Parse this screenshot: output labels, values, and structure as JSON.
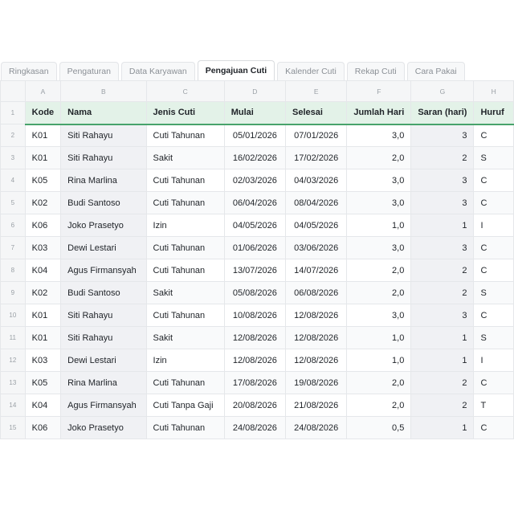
{
  "tabs": [
    {
      "label": "Ringkasan",
      "active": false
    },
    {
      "label": "Pengaturan",
      "active": false
    },
    {
      "label": "Data Karyawan",
      "active": false
    },
    {
      "label": "Pengajuan Cuti",
      "active": true
    },
    {
      "label": "Kalender Cuti",
      "active": false
    },
    {
      "label": "Rekap Cuti",
      "active": false
    },
    {
      "label": "Cara Pakai",
      "active": false
    }
  ],
  "column_letters": [
    "A",
    "B",
    "C",
    "D",
    "E",
    "F",
    "G",
    "H"
  ],
  "headers": [
    "Kode",
    "Nama",
    "Jenis Cuti",
    "Mulai",
    "Selesai",
    "Jumlah Hari",
    "Saran (hari)",
    "Huruf"
  ],
  "row_numbers": [
    "1",
    "2",
    "3",
    "4",
    "5",
    "6",
    "7",
    "8",
    "9",
    "10",
    "11",
    "12",
    "13",
    "14",
    "15"
  ],
  "rows": [
    [
      "K01",
      "Siti Rahayu",
      "Cuti Tahunan",
      "05/01/2026",
      "07/01/2026",
      "3,0",
      "3",
      "C"
    ],
    [
      "K01",
      "Siti Rahayu",
      "Sakit",
      "16/02/2026",
      "17/02/2026",
      "2,0",
      "2",
      "S"
    ],
    [
      "K05",
      "Rina Marlina",
      "Cuti Tahunan",
      "02/03/2026",
      "04/03/2026",
      "3,0",
      "3",
      "C"
    ],
    [
      "K02",
      "Budi Santoso",
      "Cuti Tahunan",
      "06/04/2026",
      "08/04/2026",
      "3,0",
      "3",
      "C"
    ],
    [
      "K06",
      "Joko Prasetyo",
      "Izin",
      "04/05/2026",
      "04/05/2026",
      "1,0",
      "1",
      "I"
    ],
    [
      "K03",
      "Dewi Lestari",
      "Cuti Tahunan",
      "01/06/2026",
      "03/06/2026",
      "3,0",
      "3",
      "C"
    ],
    [
      "K04",
      "Agus Firmansyah",
      "Cuti Tahunan",
      "13/07/2026",
      "14/07/2026",
      "2,0",
      "2",
      "C"
    ],
    [
      "K02",
      "Budi Santoso",
      "Sakit",
      "05/08/2026",
      "06/08/2026",
      "2,0",
      "2",
      "S"
    ],
    [
      "K01",
      "Siti Rahayu",
      "Cuti Tahunan",
      "10/08/2026",
      "12/08/2026",
      "3,0",
      "3",
      "C"
    ],
    [
      "K01",
      "Siti Rahayu",
      "Sakit",
      "12/08/2026",
      "12/08/2026",
      "1,0",
      "1",
      "S"
    ],
    [
      "K03",
      "Dewi Lestari",
      "Izin",
      "12/08/2026",
      "12/08/2026",
      "1,0",
      "1",
      "I"
    ],
    [
      "K05",
      "Rina Marlina",
      "Cuti Tahunan",
      "17/08/2026",
      "19/08/2026",
      "2,0",
      "2",
      "C"
    ],
    [
      "K04",
      "Agus Firmansyah",
      "Cuti Tanpa Gaji",
      "20/08/2026",
      "21/08/2026",
      "2,0",
      "2",
      "T"
    ],
    [
      "K06",
      "Joko Prasetyo",
      "Cuti Tahunan",
      "24/08/2026",
      "24/08/2026",
      "0,5",
      "1",
      "C"
    ]
  ],
  "colors": {
    "header_fill": "#e3f2e8",
    "header_rule": "#47a36b",
    "formula_column_fill": "#f0f1f4"
  }
}
